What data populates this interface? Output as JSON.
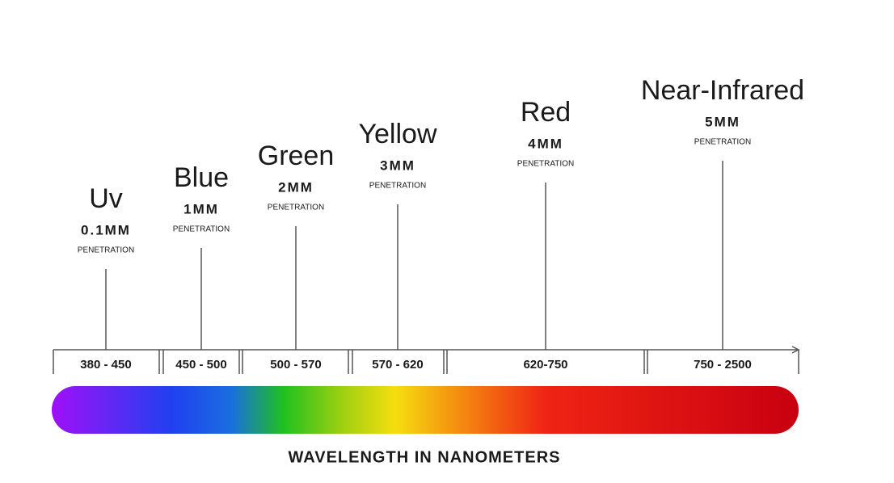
{
  "bands": [
    {
      "name": "Uv",
      "depth": "0.1MM",
      "note": "PENETRATION",
      "range": "380 - 450"
    },
    {
      "name": "Blue",
      "depth": "1MM",
      "note": "PENETRATION",
      "range": "450 - 500"
    },
    {
      "name": "Green",
      "depth": "2MM",
      "note": "PENETRATION",
      "range": "500 - 570"
    },
    {
      "name": "Yellow",
      "depth": "3MM",
      "note": "PENETRATION",
      "range": "570 - 620"
    },
    {
      "name": "Red",
      "depth": "4MM",
      "note": "PENETRATION",
      "range": "620-750"
    },
    {
      "name": "Near-Infrared",
      "depth": "5MM",
      "note": "PENETRATION",
      "range": "750 - 2500"
    }
  ],
  "axis_label": "WAVELENGTH IN NANOMETERS"
}
